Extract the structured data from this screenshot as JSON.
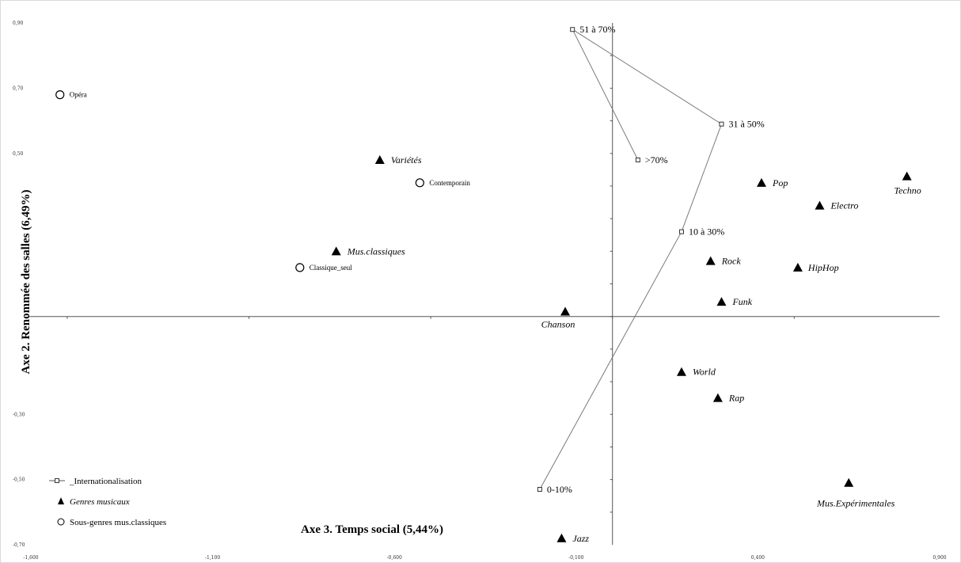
{
  "chart_data": {
    "type": "scatter",
    "xlim": [
      -1.6,
      0.9
    ],
    "ylim": [
      -0.7,
      0.9
    ],
    "x_ticks": [
      "-1,600",
      "-1,100",
      "-0,600",
      "-0,100",
      "0,400",
      "0,900"
    ],
    "y_ticks": [
      "0,90",
      "0,70",
      "0,50",
      "-0,30",
      "-0,50",
      "-0,70"
    ],
    "ylabel": "Axe 2. Renommée des salles (6,49%)",
    "xlabel": "Axe 3. Temps social (5,44%)",
    "legend": [
      {
        "label": "_Internationalisation",
        "marker": "line-square"
      },
      {
        "label": "Genres musicaux",
        "marker": "triangle"
      },
      {
        "label": "Sous-genres mus.classiques",
        "marker": "circle"
      }
    ],
    "series": [
      {
        "name": "_Internationalisation",
        "marker": "square",
        "connected": true,
        "points": [
          {
            "label": "0-10%",
            "x": -0.2,
            "y": -0.53
          },
          {
            "label": "10 à 30%",
            "x": 0.19,
            "y": 0.26
          },
          {
            "label": "31 à 50%",
            "x": 0.3,
            "y": 0.59
          },
          {
            "label": "51 à 70%",
            "x": -0.11,
            "y": 0.88
          },
          {
            "label": ">70%",
            "x": 0.07,
            "y": 0.48
          }
        ]
      },
      {
        "name": "Genres musicaux",
        "marker": "triangle",
        "points": [
          {
            "label": "Variétés",
            "x": -0.64,
            "y": 0.48
          },
          {
            "label": "Mus.classiques",
            "x": -0.76,
            "y": 0.2
          },
          {
            "label": "Chanson",
            "x": -0.13,
            "y": 0.015
          },
          {
            "label": "Pop",
            "x": 0.41,
            "y": 0.41
          },
          {
            "label": "Electro",
            "x": 0.57,
            "y": 0.34
          },
          {
            "label": "Techno",
            "x": 0.81,
            "y": 0.43
          },
          {
            "label": "Rock",
            "x": 0.27,
            "y": 0.17
          },
          {
            "label": "HipHop",
            "x": 0.51,
            "y": 0.15
          },
          {
            "label": "Funk",
            "x": 0.3,
            "y": 0.045
          },
          {
            "label": "World",
            "x": 0.19,
            "y": -0.17
          },
          {
            "label": "Rap",
            "x": 0.29,
            "y": -0.25
          },
          {
            "label": "Mus.Expérimentales",
            "x": 0.65,
            "y": -0.51
          },
          {
            "label": "Jazz",
            "x": -0.14,
            "y": -0.68
          }
        ]
      },
      {
        "name": "Sous-genres mus.classiques",
        "marker": "circle",
        "points": [
          {
            "label": "Opéra",
            "x": -1.52,
            "y": 0.68
          },
          {
            "label": "Contemporain",
            "x": -0.53,
            "y": 0.41
          },
          {
            "label": "Classique_seul",
            "x": -0.86,
            "y": 0.15
          }
        ]
      }
    ]
  }
}
